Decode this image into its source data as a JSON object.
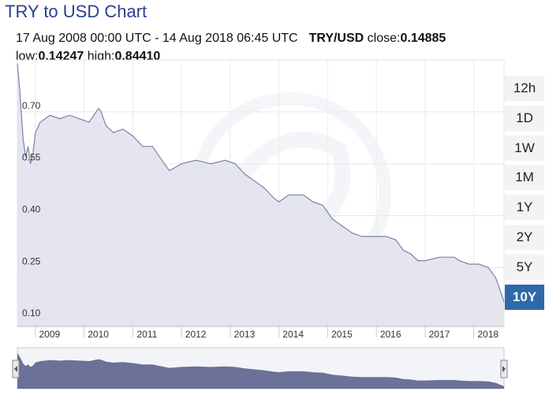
{
  "header": {
    "title": "TRY to USD Chart",
    "range": "17 Aug 2008 00:00 UTC - 14 Aug 2018 06:45 UTC",
    "pair": "TRY/USD",
    "close_label": "close:",
    "close_value": "0.14885",
    "low_label": "low:",
    "low_value": "0.14247",
    "high_label": "high:",
    "high_value": "0.84410"
  },
  "buttons": [
    {
      "label": "12h",
      "active": false
    },
    {
      "label": "1D",
      "active": false
    },
    {
      "label": "1W",
      "active": false
    },
    {
      "label": "1M",
      "active": false
    },
    {
      "label": "1Y",
      "active": false
    },
    {
      "label": "2Y",
      "active": false
    },
    {
      "label": "5Y",
      "active": false
    },
    {
      "label": "10Y",
      "active": true
    }
  ],
  "colors": {
    "line": "#7d83a6",
    "area": "#dfe1ec",
    "navigator": "#6b7199",
    "active": "#2e6aa8",
    "title": "#2a3f8f"
  },
  "chart_data": {
    "type": "area",
    "title": "TRY to USD Chart",
    "xlabel": "",
    "ylabel": "",
    "x_range": [
      2008.63,
      2018.62
    ],
    "ylim": [
      0.08,
      0.85
    ],
    "y_ticks": [
      0.1,
      0.25,
      0.4,
      0.55,
      0.7
    ],
    "y_tick_labels": [
      "0.10",
      "0.25",
      "0.40",
      "0.55",
      "0.70"
    ],
    "x_ticks": [
      2009,
      2010,
      2011,
      2012,
      2013,
      2014,
      2015,
      2016,
      2017,
      2018
    ],
    "x_tick_labels": [
      "2009",
      "2010",
      "2011",
      "2012",
      "2013",
      "2014",
      "2015",
      "2016",
      "2017",
      "2018"
    ],
    "grid": true,
    "x": [
      2008.63,
      2008.68,
      2008.75,
      2008.8,
      2008.85,
      2008.9,
      2008.95,
      2009.0,
      2009.1,
      2009.2,
      2009.3,
      2009.5,
      2009.7,
      2009.9,
      2010.1,
      2010.3,
      2010.35,
      2010.45,
      2010.6,
      2010.8,
      2011.0,
      2011.2,
      2011.4,
      2011.6,
      2011.75,
      2012.0,
      2012.3,
      2012.6,
      2012.9,
      2013.1,
      2013.3,
      2013.5,
      2013.7,
      2013.9,
      2014.0,
      2014.2,
      2014.5,
      2014.7,
      2014.9,
      2015.1,
      2015.3,
      2015.5,
      2015.7,
      2015.9,
      2016.2,
      2016.4,
      2016.55,
      2016.7,
      2016.85,
      2017.0,
      2017.3,
      2017.6,
      2017.7,
      2017.9,
      2018.1,
      2018.3,
      2018.45,
      2018.55,
      2018.62
    ],
    "y": [
      0.84,
      0.76,
      0.62,
      0.57,
      0.6,
      0.55,
      0.58,
      0.64,
      0.67,
      0.68,
      0.69,
      0.68,
      0.69,
      0.68,
      0.67,
      0.71,
      0.7,
      0.66,
      0.64,
      0.65,
      0.63,
      0.6,
      0.6,
      0.56,
      0.53,
      0.55,
      0.56,
      0.55,
      0.56,
      0.55,
      0.52,
      0.5,
      0.48,
      0.45,
      0.44,
      0.46,
      0.46,
      0.44,
      0.43,
      0.39,
      0.37,
      0.35,
      0.34,
      0.34,
      0.34,
      0.33,
      0.3,
      0.29,
      0.27,
      0.27,
      0.28,
      0.28,
      0.27,
      0.26,
      0.26,
      0.25,
      0.22,
      0.18,
      0.15
    ]
  }
}
